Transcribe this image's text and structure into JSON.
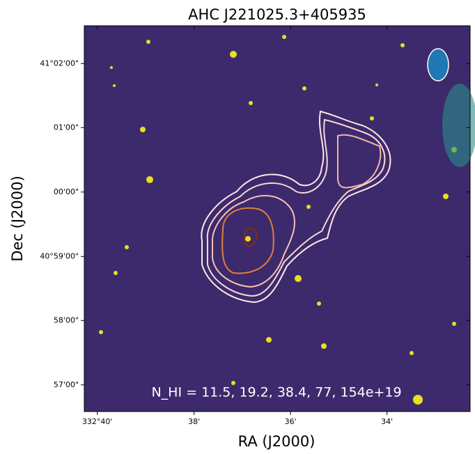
{
  "chart_data": {
    "type": "image",
    "title": "AHC J221025.3+405935",
    "x_label": "RA (J2000)",
    "y_label": "Dec (J2000)",
    "annotation": "N_HI = 11.5, 19.2, 38.4, 77, 154e+19",
    "xlim": [
      332.6712,
      332.538
    ],
    "ylim": [
      40.9431,
      41.0431
    ],
    "xticks": [
      {
        "value": 332.6667,
        "label": "332°40'"
      },
      {
        "value": 332.6333,
        "label": "38'"
      },
      {
        "value": 332.6,
        "label": "36'"
      },
      {
        "value": 332.5667,
        "label": "34'"
      }
    ],
    "yticks": [
      {
        "value": 41.0333,
        "label": "41°02'00\""
      },
      {
        "value": 41.0167,
        "label": "01'00\""
      },
      {
        "value": 41.0,
        "label": "00'00\""
      },
      {
        "value": 40.9833,
        "label": "40°59'00\""
      },
      {
        "value": 40.9667,
        "label": "58'00\""
      },
      {
        "value": 40.95,
        "label": "57'00\""
      }
    ]
  }
}
